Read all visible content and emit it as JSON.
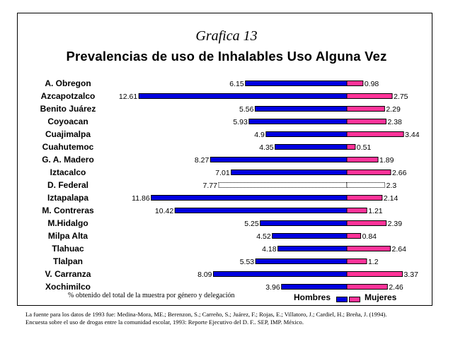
{
  "subtitle": "Grafica 13",
  "title": "Prevalencias de uso de Inhalables Uso Alguna Vez",
  "footnote": "% obtenido del total de la muestra por género y delegación",
  "source_line1": "La fuente para los datos de 1993 fue: Medina-Mora, ME.; Berenzon, S.; Carreño, S.; Juárez, F.; Rojas, E.; Villatoro, J.; Cardiel, H.; Breña, J. (1994).",
  "source_line2": "Encuesta sobre el uso de drogas entre la comunidad escolar, 1993: Reporte Ejecutivo del D. F.. SEP, IMP. México.",
  "colors": {
    "hombres": "#0000e0",
    "mujeres": "#ff3399",
    "highlight": "#ffffff"
  },
  "chart_data": {
    "type": "bar",
    "orientation": "horizontal-diverging",
    "categories": [
      "A. Obregon",
      "Azcapotzalco",
      "Benito Juárez",
      "Coyoacan",
      "Cuajimalpa",
      "Cuahutemoc",
      "G. A. Madero",
      "Iztacalco",
      "D. Federal",
      "Iztapalapa",
      "M. Contreras",
      "M.Hidalgo",
      "Milpa Alta",
      "Tlahuac",
      "Tlalpan",
      "V. Carranza",
      "Xochimilco"
    ],
    "value_labels_hombres": [
      "6.15",
      "12.61",
      "5.56",
      "5.93",
      "4.9",
      "4.35",
      "8.27",
      "7.01",
      "7.77",
      "11.86",
      "10.42",
      "5.25",
      "4.52",
      "4.18",
      "5.53",
      "8.09",
      "3.96"
    ],
    "value_labels_mujeres": [
      "0.98",
      "2.75",
      "2.29",
      "2.38",
      "3.44",
      "0.51",
      "1.89",
      "2.66",
      "2.3",
      "2.14",
      "1.21",
      "2.39",
      "0.84",
      "2.64",
      "1.2",
      "3.37",
      "2.46"
    ],
    "highlight_category": "D. Federal",
    "series": [
      {
        "name": "Hombres",
        "values": [
          6.15,
          12.61,
          5.56,
          5.93,
          4.9,
          4.35,
          8.27,
          7.01,
          7.77,
          11.86,
          10.42,
          5.25,
          4.52,
          4.18,
          5.53,
          8.09,
          3.96
        ]
      },
      {
        "name": "Mujeres",
        "values": [
          0.98,
          2.75,
          2.29,
          2.38,
          3.44,
          0.51,
          1.89,
          2.66,
          2.3,
          2.14,
          1.21,
          2.39,
          0.84,
          2.64,
          1.2,
          3.37,
          2.46
        ]
      }
    ],
    "legend_position": "bottom-right",
    "grid": false
  }
}
